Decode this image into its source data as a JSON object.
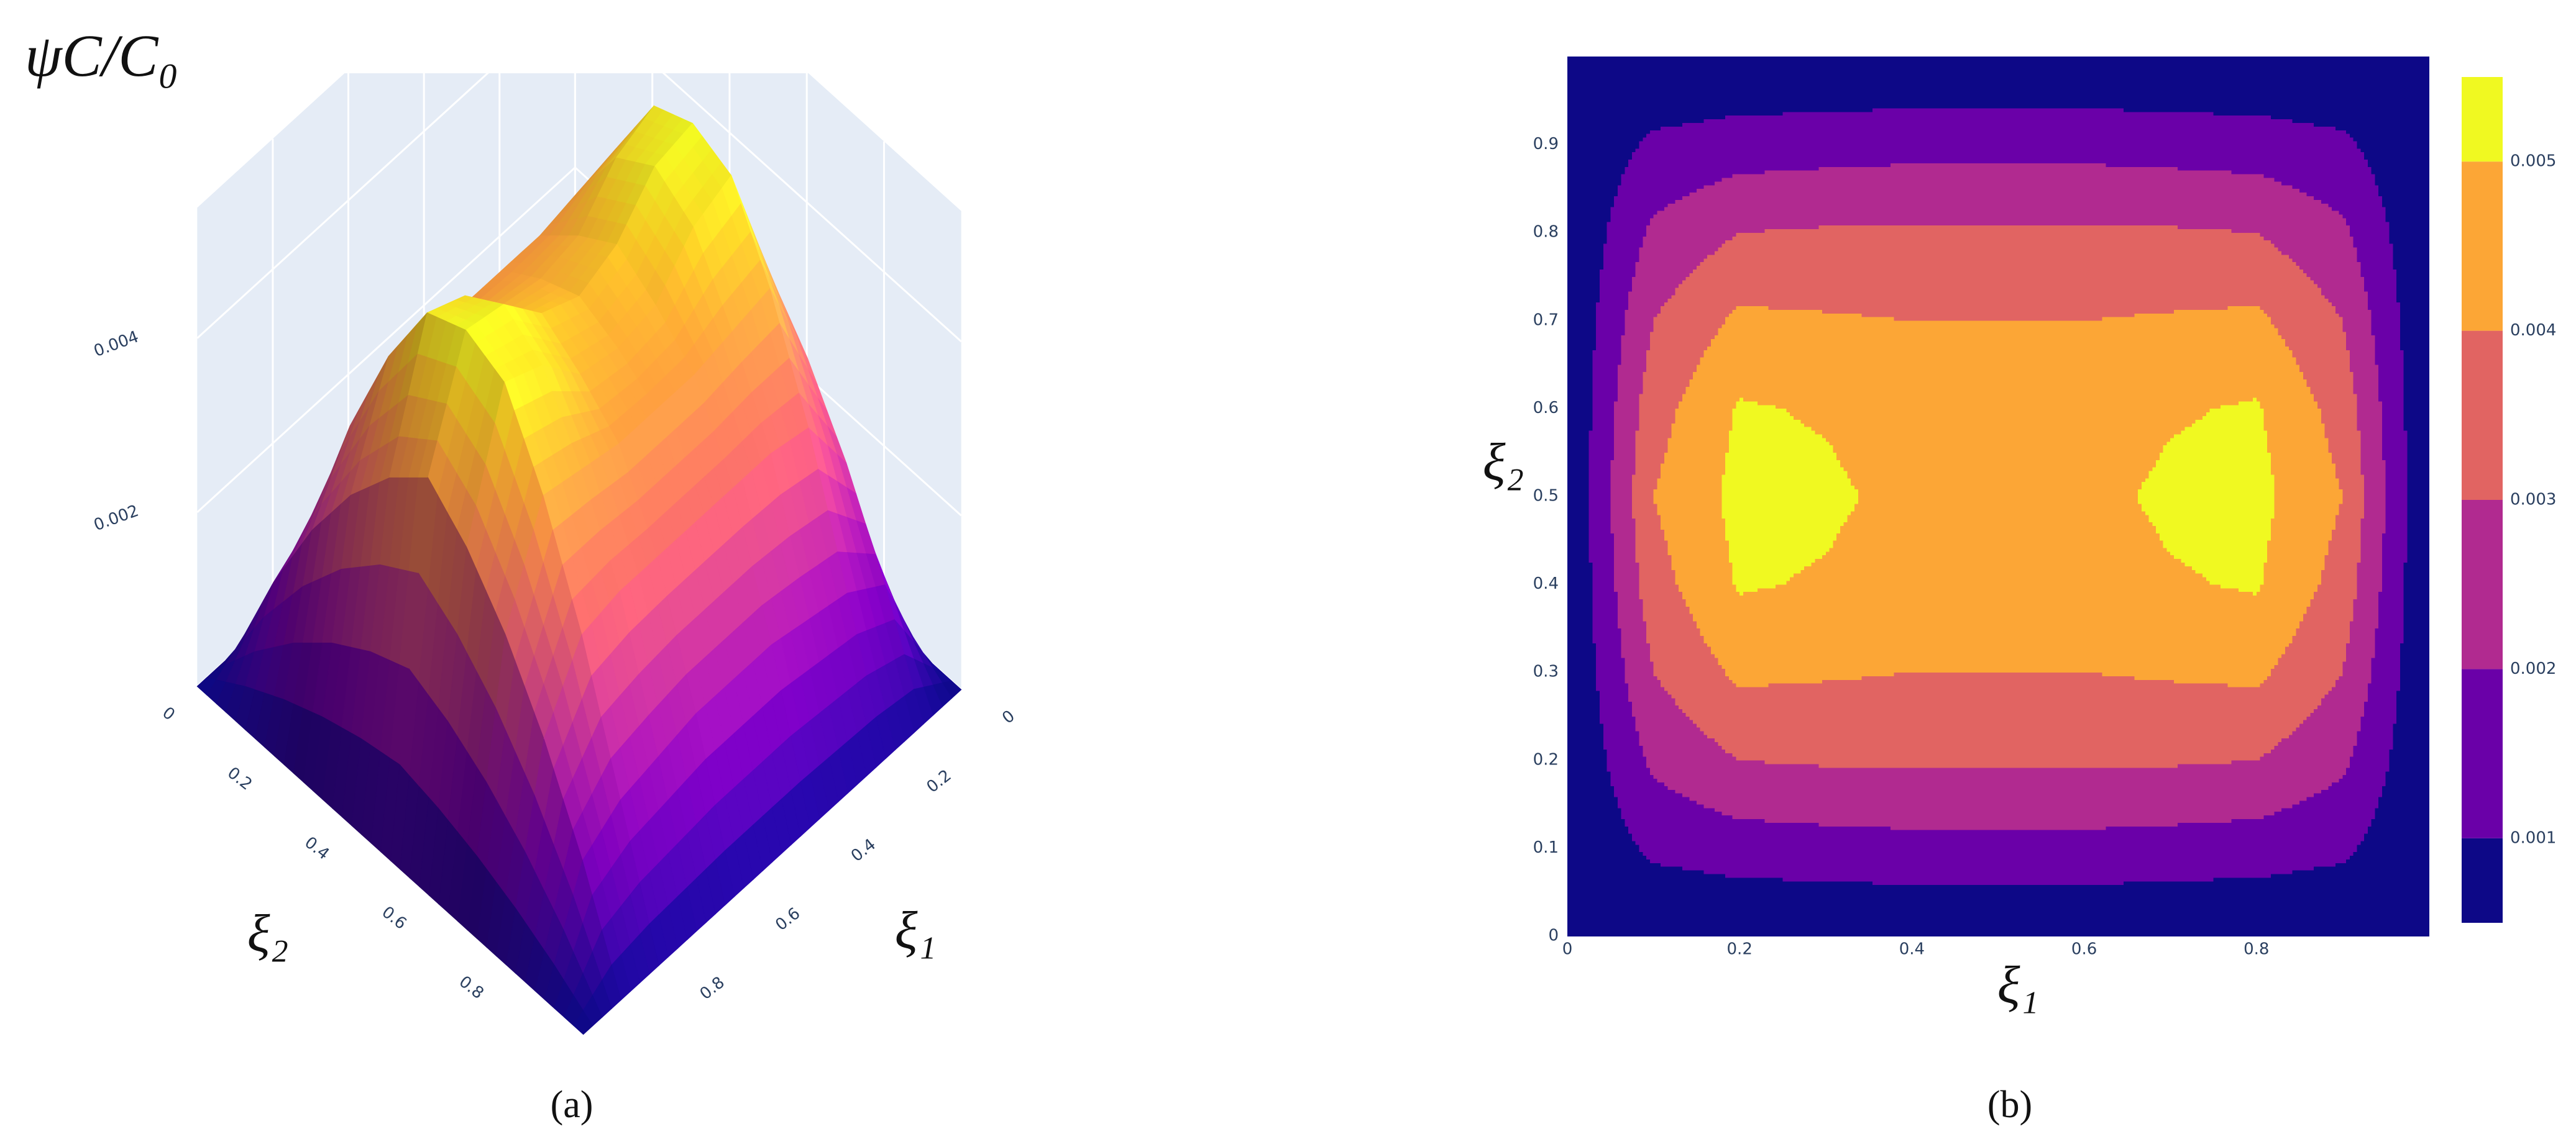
{
  "chart_data": [
    {
      "type": "surface",
      "title": "ψC/C₀",
      "x_label": "ξ₁",
      "y_label": "ξ₂",
      "caption": "(a)",
      "x": [
        0,
        0.1,
        0.2,
        0.3,
        0.4,
        0.5,
        0.6,
        0.7,
        0.8,
        0.9,
        1
      ],
      "y": [
        0,
        0.1,
        0.2,
        0.3,
        0.4,
        0.5,
        0.6,
        0.7,
        0.8,
        0.9,
        1
      ],
      "z": [
        [
          0,
          0,
          0,
          0,
          0,
          0,
          0,
          0,
          0,
          0,
          0
        ],
        [
          0,
          0.0012,
          0.0015,
          0.0016,
          0.0017,
          0.0017,
          0.0017,
          0.0016,
          0.0015,
          0.0012,
          0
        ],
        [
          0,
          0.0022,
          0.003,
          0.0031,
          0.0031,
          0.0031,
          0.0031,
          0.0031,
          0.003,
          0.0022,
          0
        ],
        [
          0,
          0.003,
          0.0042,
          0.0041,
          0.004,
          0.004,
          0.004,
          0.0041,
          0.0042,
          0.003,
          0
        ],
        [
          0,
          0.0036,
          0.0051,
          0.0049,
          0.0044,
          0.0043,
          0.0044,
          0.0049,
          0.0051,
          0.0036,
          0
        ],
        [
          0,
          0.004,
          0.0053,
          0.0052,
          0.0047,
          0.0045,
          0.0047,
          0.0052,
          0.0053,
          0.004,
          0
        ],
        [
          0,
          0.0036,
          0.0051,
          0.0049,
          0.0044,
          0.0043,
          0.0044,
          0.0049,
          0.0051,
          0.0036,
          0
        ],
        [
          0,
          0.003,
          0.0042,
          0.0041,
          0.004,
          0.004,
          0.004,
          0.0041,
          0.0042,
          0.003,
          0
        ],
        [
          0,
          0.0022,
          0.003,
          0.0031,
          0.0031,
          0.0031,
          0.0031,
          0.0031,
          0.003,
          0.0022,
          0
        ],
        [
          0,
          0.0012,
          0.0015,
          0.0016,
          0.0017,
          0.0017,
          0.0017,
          0.0016,
          0.0015,
          0.0012,
          0
        ],
        [
          0,
          0,
          0,
          0,
          0,
          0,
          0,
          0,
          0,
          0,
          0
        ]
      ],
      "xlim": [
        0,
        1
      ],
      "ylim": [
        0,
        1
      ],
      "zlim": [
        0,
        0.0055
      ],
      "xticks": [
        0,
        0.2,
        0.4,
        0.6,
        0.8
      ],
      "yticks": [
        0,
        0.2,
        0.4,
        0.6,
        0.8
      ],
      "zticks": [
        0.002,
        0.004
      ],
      "colorscale": [
        "#0d0887",
        "#46039f",
        "#7201a8",
        "#9c179e",
        "#bd3786",
        "#d8576b",
        "#ed7953",
        "#fb9f3a",
        "#fdca26",
        "#f0f921"
      ],
      "wall_color": "#e5ecf6",
      "grid": true
    },
    {
      "type": "contour",
      "x_label": "ξ₁",
      "y_label": "ξ₂",
      "caption": "(b)",
      "x": [
        0,
        0.1,
        0.2,
        0.3,
        0.4,
        0.5,
        0.6,
        0.7,
        0.8,
        0.9,
        1
      ],
      "y": [
        0,
        0.1,
        0.2,
        0.3,
        0.4,
        0.5,
        0.6,
        0.7,
        0.8,
        0.9,
        1
      ],
      "z": [
        [
          0,
          0,
          0,
          0,
          0,
          0,
          0,
          0,
          0,
          0,
          0
        ],
        [
          0,
          0.0012,
          0.0015,
          0.0016,
          0.0017,
          0.0017,
          0.0017,
          0.0016,
          0.0015,
          0.0012,
          0
        ],
        [
          0,
          0.0022,
          0.003,
          0.0031,
          0.0031,
          0.0031,
          0.0031,
          0.0031,
          0.003,
          0.0022,
          0
        ],
        [
          0,
          0.003,
          0.0042,
          0.0041,
          0.004,
          0.004,
          0.004,
          0.0041,
          0.0042,
          0.003,
          0
        ],
        [
          0,
          0.0036,
          0.0051,
          0.0049,
          0.0044,
          0.0043,
          0.0044,
          0.0049,
          0.0051,
          0.0036,
          0
        ],
        [
          0,
          0.004,
          0.0053,
          0.0052,
          0.0047,
          0.0045,
          0.0047,
          0.0052,
          0.0053,
          0.004,
          0
        ],
        [
          0,
          0.0036,
          0.0051,
          0.0049,
          0.0044,
          0.0043,
          0.0044,
          0.0049,
          0.0051,
          0.0036,
          0
        ],
        [
          0,
          0.003,
          0.0042,
          0.0041,
          0.004,
          0.004,
          0.004,
          0.0041,
          0.0042,
          0.003,
          0
        ],
        [
          0,
          0.0022,
          0.003,
          0.0031,
          0.0031,
          0.0031,
          0.0031,
          0.0031,
          0.003,
          0.0022,
          0
        ],
        [
          0,
          0.0012,
          0.0015,
          0.0016,
          0.0017,
          0.0017,
          0.0017,
          0.0016,
          0.0015,
          0.0012,
          0
        ],
        [
          0,
          0,
          0,
          0,
          0,
          0,
          0,
          0,
          0,
          0,
          0
        ]
      ],
      "xlim": [
        0,
        1
      ],
      "ylim": [
        0,
        1
      ],
      "xticks": [
        0,
        0.2,
        0.4,
        0.6,
        0.8
      ],
      "yticks": [
        0,
        0.1,
        0.2,
        0.3,
        0.4,
        0.5,
        0.6,
        0.7,
        0.8,
        0.9
      ],
      "levels": [
        0.001,
        0.002,
        0.003,
        0.004,
        0.005
      ],
      "colors": [
        "#0d0887",
        "#6a00a8",
        "#b12a90",
        "#e16462",
        "#fca636",
        "#f0f921"
      ],
      "colorbar_lim": [
        0.0005,
        0.0055
      ],
      "colorbar_ticks": [
        0.001,
        0.002,
        0.003,
        0.004,
        0.005
      ]
    }
  ]
}
